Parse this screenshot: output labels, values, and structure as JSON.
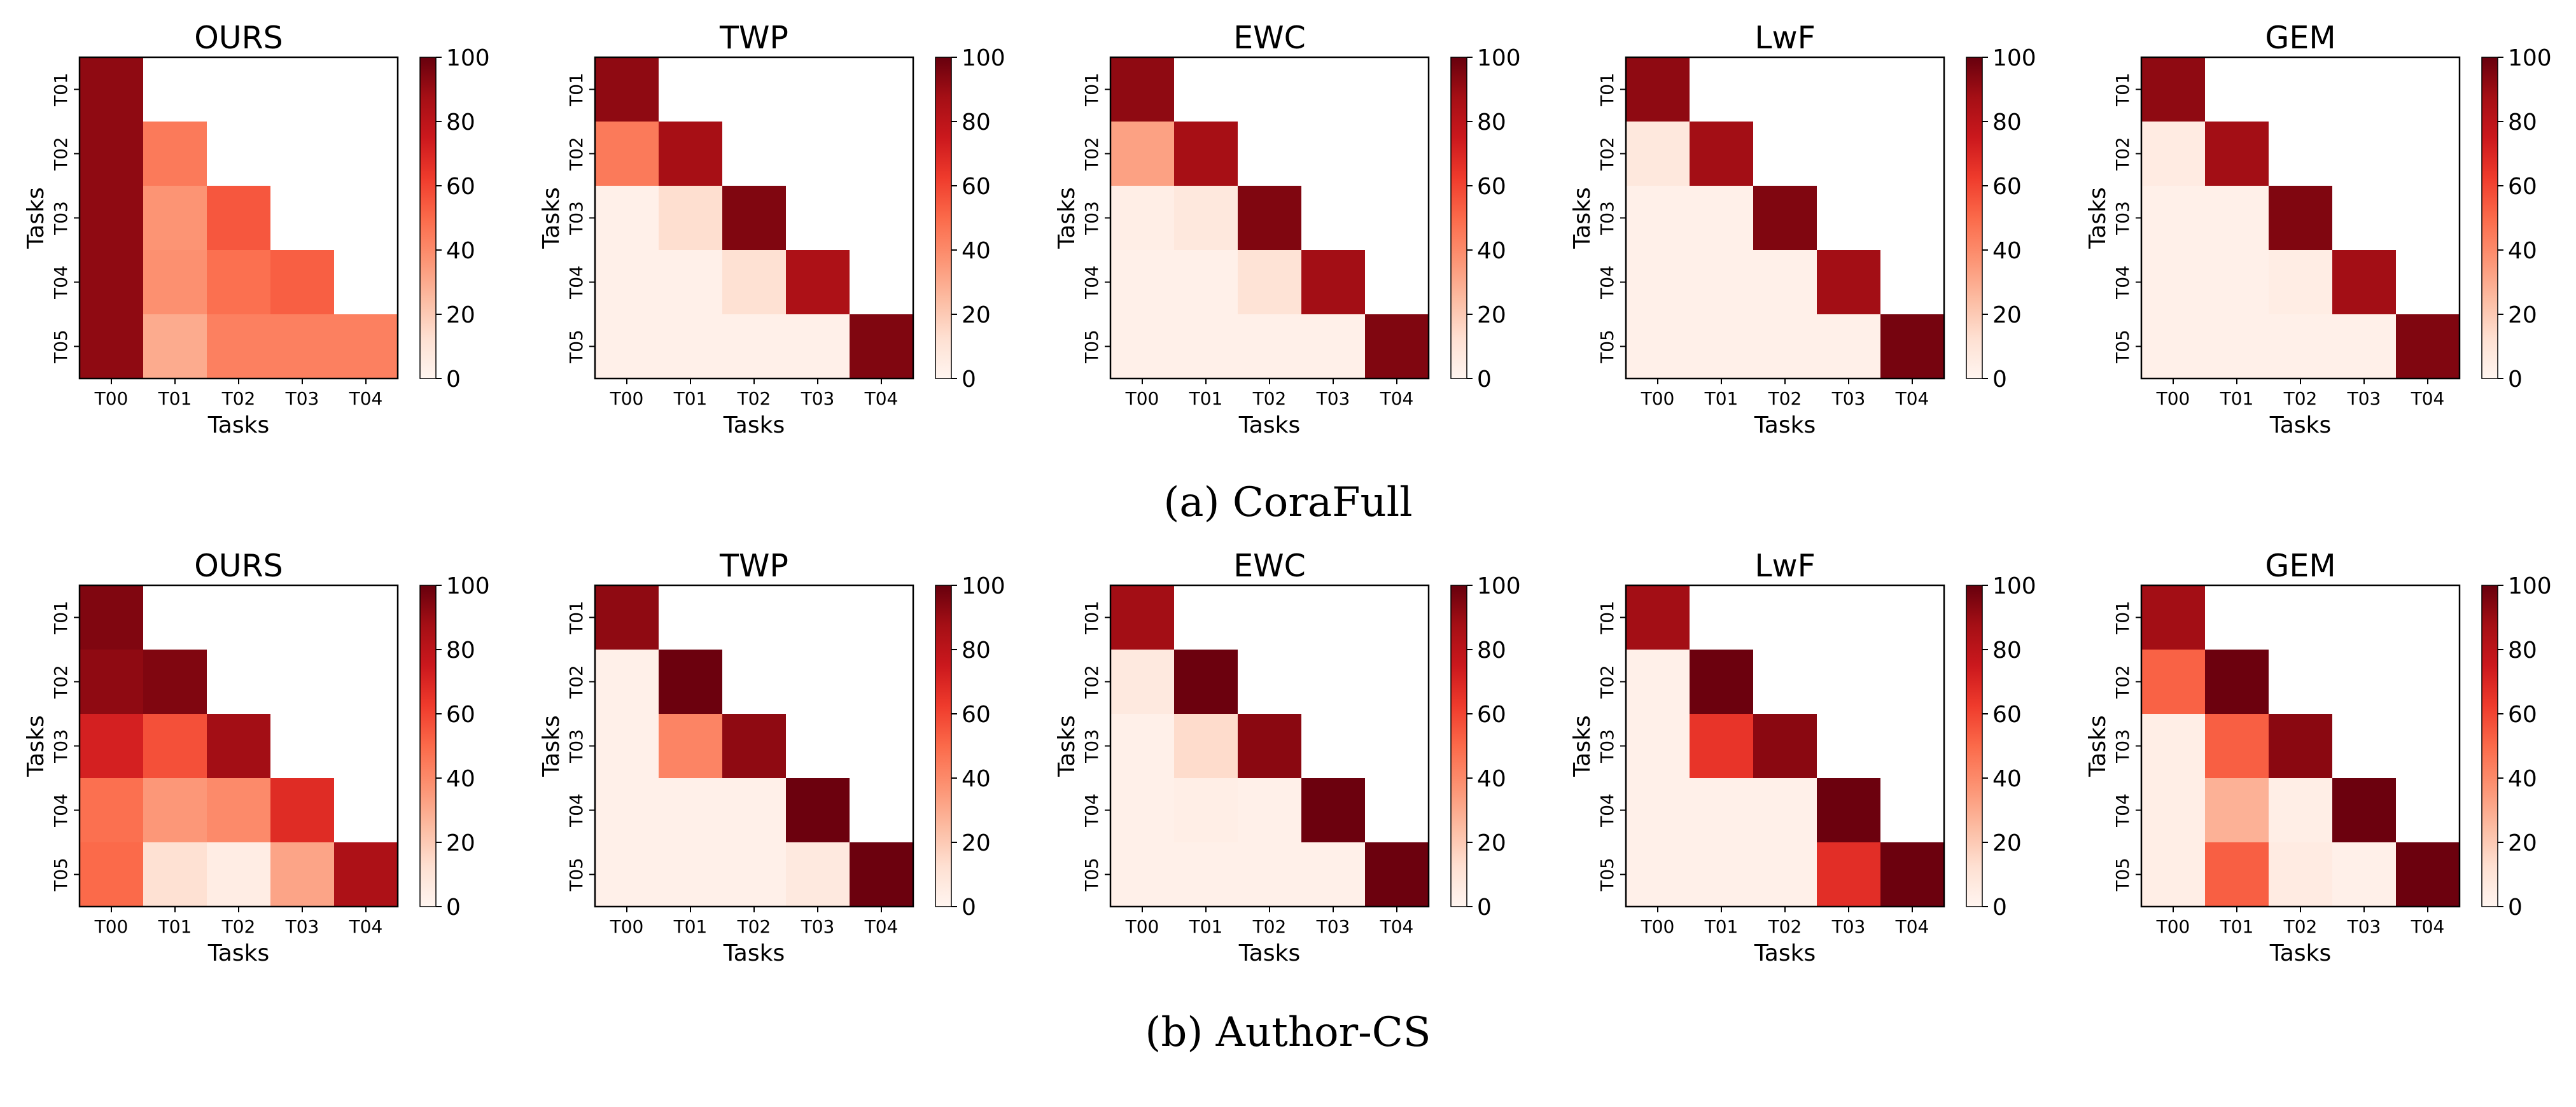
{
  "chart_data": [
    {
      "type": "heatmap",
      "group": "CoraFull",
      "title": "OURS",
      "xlabel": "Tasks",
      "ylabel": "Tasks",
      "x_ticks": [
        "T00",
        "T01",
        "T02",
        "T03",
        "T04"
      ],
      "y_ticks": [
        "T01",
        "T02",
        "T03",
        "T04",
        "T05"
      ],
      "colorbar": {
        "min": 0,
        "max": 100,
        "ticks": [
          "0",
          "20",
          "40",
          "60",
          "80",
          "100"
        ]
      },
      "values": [
        [
          92,
          null,
          null,
          null,
          null
        ],
        [
          92,
          45,
          null,
          null,
          null
        ],
        [
          92,
          37,
          55,
          null,
          null
        ],
        [
          92,
          38,
          48,
          53,
          null
        ],
        [
          92,
          30,
          43,
          43,
          43
        ]
      ]
    },
    {
      "type": "heatmap",
      "group": "CoraFull",
      "title": "TWP",
      "xlabel": "Tasks",
      "ylabel": "Tasks",
      "x_ticks": [
        "T00",
        "T01",
        "T02",
        "T03",
        "T04"
      ],
      "y_ticks": [
        "T01",
        "T02",
        "T03",
        "T04",
        "T05"
      ],
      "colorbar": {
        "min": 0,
        "max": 100,
        "ticks": [
          "0",
          "20",
          "40",
          "60",
          "80",
          "100"
        ]
      },
      "values": [
        [
          92,
          null,
          null,
          null,
          null
        ],
        [
          45,
          87,
          null,
          null,
          null
        ],
        [
          3,
          13,
          95,
          null,
          null
        ],
        [
          3,
          3,
          12,
          85,
          null
        ],
        [
          3,
          3,
          3,
          3,
          95
        ]
      ]
    },
    {
      "type": "heatmap",
      "group": "CoraFull",
      "title": "EWC",
      "xlabel": "Tasks",
      "ylabel": "Tasks",
      "x_ticks": [
        "T00",
        "T01",
        "T02",
        "T03",
        "T04"
      ],
      "y_ticks": [
        "T01",
        "T02",
        "T03",
        "T04",
        "T05"
      ],
      "colorbar": {
        "min": 0,
        "max": 100,
        "ticks": [
          "0",
          "20",
          "40",
          "60",
          "80",
          "100"
        ]
      },
      "values": [
        [
          92,
          null,
          null,
          null,
          null
        ],
        [
          33,
          87,
          null,
          null,
          null
        ],
        [
          4,
          8,
          95,
          null,
          null
        ],
        [
          3,
          3,
          11,
          88,
          null
        ],
        [
          3,
          3,
          3,
          3,
          95
        ]
      ]
    },
    {
      "type": "heatmap",
      "group": "CoraFull",
      "title": "LwF",
      "xlabel": "Tasks",
      "ylabel": "Tasks",
      "x_ticks": [
        "T00",
        "T01",
        "T02",
        "T03",
        "T04"
      ],
      "y_ticks": [
        "T01",
        "T02",
        "T03",
        "T04",
        "T05"
      ],
      "colorbar": {
        "min": 0,
        "max": 100,
        "ticks": [
          "0",
          "20",
          "40",
          "60",
          "80",
          "100"
        ]
      },
      "values": [
        [
          92,
          null,
          null,
          null,
          null
        ],
        [
          8,
          88,
          null,
          null,
          null
        ],
        [
          3,
          3,
          95,
          null,
          null
        ],
        [
          3,
          3,
          3,
          88,
          null
        ],
        [
          3,
          3,
          3,
          3,
          97
        ]
      ]
    },
    {
      "type": "heatmap",
      "group": "CoraFull",
      "title": "GEM",
      "xlabel": "Tasks",
      "ylabel": "Tasks",
      "x_ticks": [
        "T00",
        "T01",
        "T02",
        "T03",
        "T04"
      ],
      "y_ticks": [
        "T01",
        "T02",
        "T03",
        "T04",
        "T05"
      ],
      "colorbar": {
        "min": 0,
        "max": 100,
        "ticks": [
          "0",
          "20",
          "40",
          "60",
          "80",
          "100"
        ]
      },
      "values": [
        [
          92,
          null,
          null,
          null,
          null
        ],
        [
          6,
          88,
          null,
          null,
          null
        ],
        [
          3,
          3,
          95,
          null,
          null
        ],
        [
          3,
          3,
          5,
          88,
          null
        ],
        [
          3,
          3,
          3,
          3,
          95
        ]
      ]
    },
    {
      "type": "heatmap",
      "group": "Author-CS",
      "title": "OURS",
      "xlabel": "Tasks",
      "ylabel": "Tasks",
      "x_ticks": [
        "T00",
        "T01",
        "T02",
        "T03",
        "T04"
      ],
      "y_ticks": [
        "T01",
        "T02",
        "T03",
        "T04",
        "T05"
      ],
      "colorbar": {
        "min": 0,
        "max": 100,
        "ticks": [
          "0",
          "20",
          "40",
          "60",
          "80",
          "100"
        ]
      },
      "values": [
        [
          95,
          null,
          null,
          null,
          null
        ],
        [
          92,
          95,
          null,
          null,
          null
        ],
        [
          72,
          57,
          88,
          null,
          null
        ],
        [
          48,
          36,
          40,
          68,
          null
        ],
        [
          50,
          12,
          5,
          32,
          85
        ]
      ]
    },
    {
      "type": "heatmap",
      "group": "Author-CS",
      "title": "TWP",
      "xlabel": "Tasks",
      "ylabel": "Tasks",
      "x_ticks": [
        "T00",
        "T01",
        "T02",
        "T03",
        "T04"
      ],
      "y_ticks": [
        "T01",
        "T02",
        "T03",
        "T04",
        "T05"
      ],
      "colorbar": {
        "min": 0,
        "max": 100,
        "ticks": [
          "0",
          "20",
          "40",
          "60",
          "80",
          "100"
        ]
      },
      "values": [
        [
          92,
          null,
          null,
          null,
          null
        ],
        [
          3,
          99,
          null,
          null,
          null
        ],
        [
          3,
          42,
          92,
          null,
          null
        ],
        [
          3,
          3,
          3,
          99,
          null
        ],
        [
          3,
          3,
          3,
          7,
          99
        ]
      ]
    },
    {
      "type": "heatmap",
      "group": "Author-CS",
      "title": "EWC",
      "xlabel": "Tasks",
      "ylabel": "Tasks",
      "x_ticks": [
        "T00",
        "T01",
        "T02",
        "T03",
        "T04"
      ],
      "y_ticks": [
        "T01",
        "T02",
        "T03",
        "T04",
        "T05"
      ],
      "colorbar": {
        "min": 0,
        "max": 100,
        "ticks": [
          "0",
          "20",
          "40",
          "60",
          "80",
          "100"
        ]
      },
      "values": [
        [
          88,
          null,
          null,
          null,
          null
        ],
        [
          7,
          99,
          null,
          null,
          null
        ],
        [
          3,
          14,
          93,
          null,
          null
        ],
        [
          3,
          4,
          3,
          99,
          null
        ],
        [
          3,
          3,
          3,
          3,
          99
        ]
      ]
    },
    {
      "type": "heatmap",
      "group": "Author-CS",
      "title": "LwF",
      "xlabel": "Tasks",
      "ylabel": "Tasks",
      "x_ticks": [
        "T00",
        "T01",
        "T02",
        "T03",
        "T04"
      ],
      "y_ticks": [
        "T01",
        "T02",
        "T03",
        "T04",
        "T05"
      ],
      "colorbar": {
        "min": 0,
        "max": 100,
        "ticks": [
          "0",
          "20",
          "40",
          "60",
          "80",
          "100"
        ]
      },
      "values": [
        [
          88,
          null,
          null,
          null,
          null
        ],
        [
          3,
          99,
          null,
          null,
          null
        ],
        [
          3,
          65,
          93,
          null,
          null
        ],
        [
          3,
          3,
          3,
          99,
          null
        ],
        [
          3,
          3,
          3,
          67,
          99
        ]
      ]
    },
    {
      "type": "heatmap",
      "group": "Author-CS",
      "title": "GEM",
      "xlabel": "Tasks",
      "ylabel": "Tasks",
      "x_ticks": [
        "T00",
        "T01",
        "T02",
        "T03",
        "T04"
      ],
      "y_ticks": [
        "T01",
        "T02",
        "T03",
        "T04",
        "T05"
      ],
      "colorbar": {
        "min": 0,
        "max": 100,
        "ticks": [
          "0",
          "20",
          "40",
          "60",
          "80",
          "100"
        ]
      },
      "values": [
        [
          88,
          null,
          null,
          null,
          null
        ],
        [
          52,
          99,
          null,
          null,
          null
        ],
        [
          4,
          53,
          93,
          null,
          null
        ],
        [
          4,
          28,
          4,
          99,
          null
        ],
        [
          4,
          53,
          6,
          3,
          99
        ]
      ]
    }
  ],
  "captions": [
    "(a) CoraFull",
    "(b) Author-CS"
  ]
}
